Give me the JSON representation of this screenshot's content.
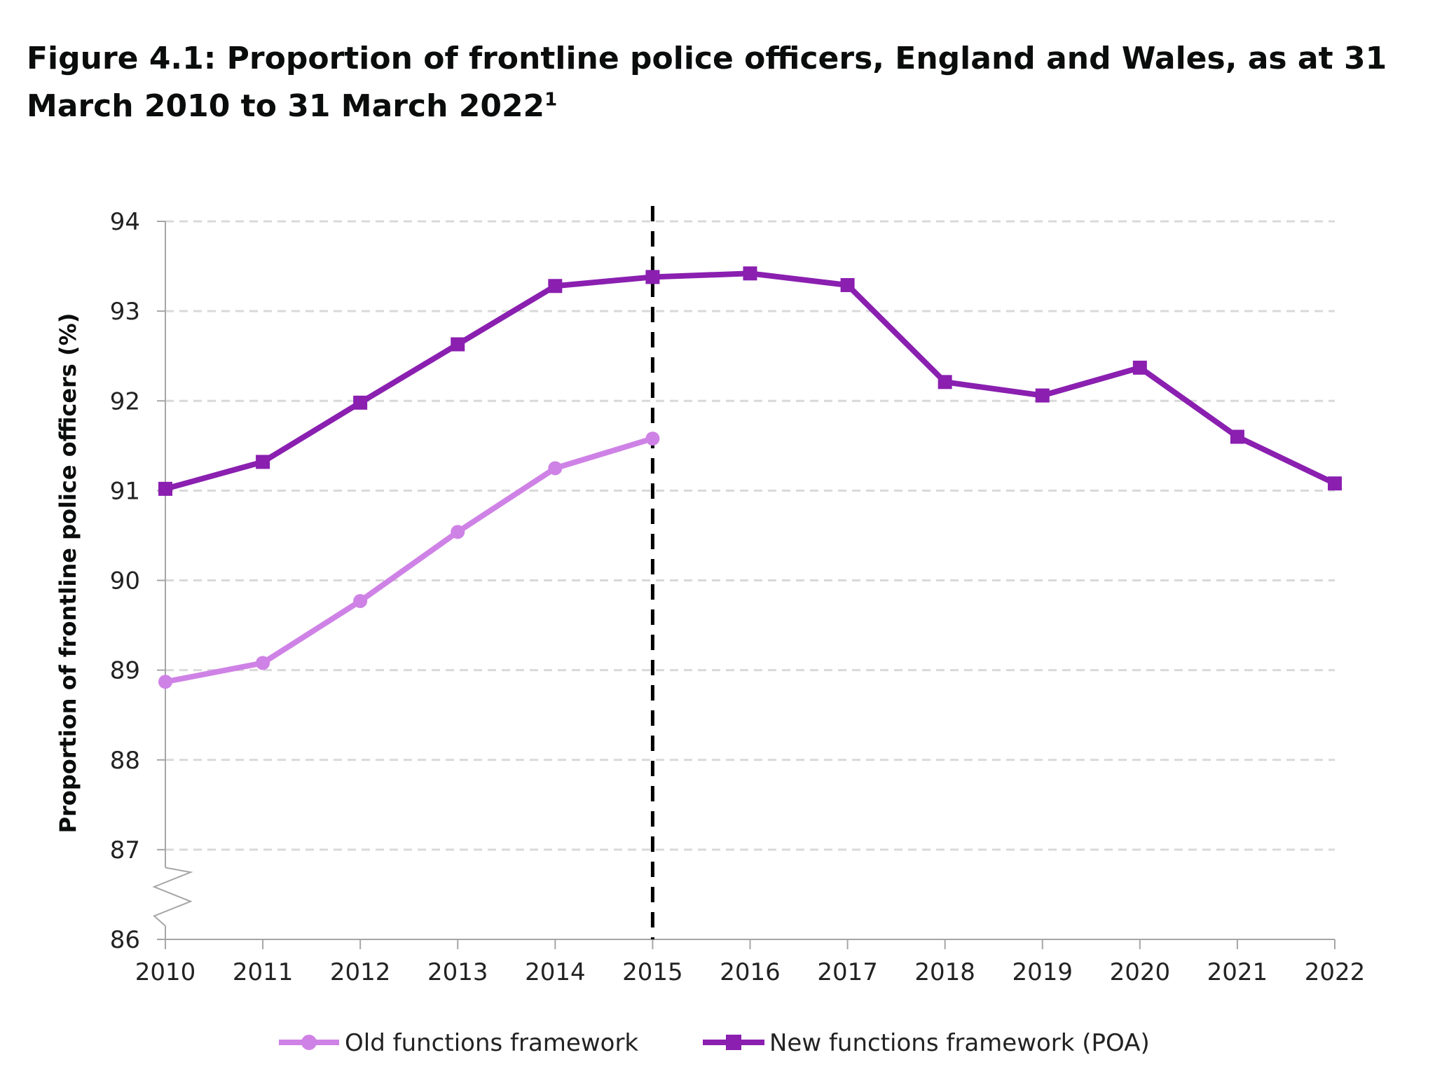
{
  "title": {
    "text": "Figure 4.1: Proportion of frontline police officers, England and Wales, as at 31 March 2010 to 31 March 2022",
    "footnote_marker": "1"
  },
  "colors": {
    "old_series": "#cf82e6",
    "new_series": "#8a1fb0",
    "gridline": "#d9d9d9",
    "axis": "#a6a6a6",
    "break_line": "#000000"
  },
  "chart_data": {
    "type": "line",
    "ylabel": "Proportion of frontline police officers (%)",
    "xlabel": "",
    "ylim": [
      86,
      94
    ],
    "yticks": [
      "86",
      "87",
      "88",
      "89",
      "90",
      "91",
      "92",
      "93",
      "94"
    ],
    "y_axis_break": true,
    "grid": true,
    "gridline_style": "dashed",
    "legend_position": "bottom",
    "x": [
      "2010",
      "2011",
      "2012",
      "2013",
      "2014",
      "2015",
      "2016",
      "2017",
      "2018",
      "2019",
      "2020",
      "2021",
      "2022"
    ],
    "vertical_marker_at": "2015",
    "series": [
      {
        "name": "Old functions framework",
        "marker": "circle",
        "color": "#cf82e6",
        "values": [
          88.87,
          89.08,
          89.77,
          90.54,
          91.25,
          91.58,
          null,
          null,
          null,
          null,
          null,
          null,
          null
        ]
      },
      {
        "name": "New functions framework (POA)",
        "marker": "square",
        "color": "#8a1fb0",
        "values": [
          91.02,
          91.32,
          91.98,
          92.63,
          93.28,
          93.38,
          93.42,
          93.29,
          92.21,
          92.06,
          92.37,
          91.6,
          91.08
        ]
      }
    ]
  }
}
